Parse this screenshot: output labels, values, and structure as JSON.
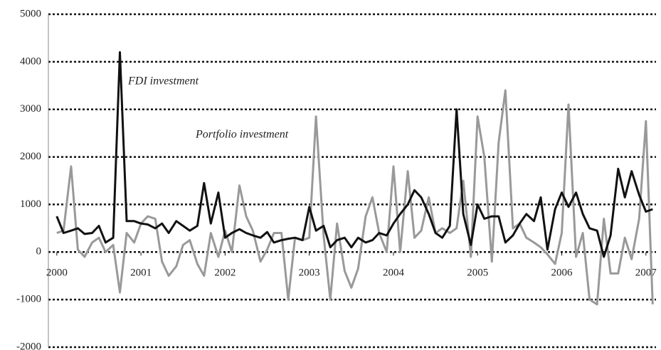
{
  "chart_data": {
    "type": "line",
    "annotations": [
      "FDI investment",
      "Portfolio investment"
    ],
    "x": [
      2000,
      2000.08,
      2000.17,
      2000.25,
      2000.33,
      2000.42,
      2000.5,
      2000.58,
      2000.67,
      2000.75,
      2000.83,
      2000.92,
      2001,
      2001.08,
      2001.17,
      2001.25,
      2001.33,
      2001.42,
      2001.5,
      2001.58,
      2001.67,
      2001.75,
      2001.83,
      2001.92,
      2002,
      2002.08,
      2002.17,
      2002.25,
      2002.33,
      2002.42,
      2002.5,
      2002.58,
      2002.67,
      2002.75,
      2002.83,
      2002.92,
      2003,
      2003.08,
      2003.17,
      2003.25,
      2003.33,
      2003.42,
      2003.5,
      2003.58,
      2003.67,
      2003.75,
      2003.83,
      2003.92,
      2004,
      2004.08,
      2004.17,
      2004.25,
      2004.33,
      2004.42,
      2004.5,
      2004.58,
      2004.67,
      2004.75,
      2004.83,
      2004.92,
      2005,
      2005.08,
      2005.17,
      2005.25,
      2005.33,
      2005.42,
      2005.5,
      2005.58,
      2005.67,
      2005.75,
      2005.83,
      2005.92,
      2006,
      2006.08,
      2006.17,
      2006.25,
      2006.33,
      2006.42,
      2006.5,
      2006.58,
      2006.67,
      2006.75,
      2006.83,
      2006.92,
      2007,
      2007.08
    ],
    "series": [
      {
        "name": "FDI investment",
        "color": "#111111",
        "values": [
          750,
          400,
          450,
          500,
          380,
          400,
          550,
          200,
          300,
          4200,
          650,
          650,
          600,
          580,
          500,
          600,
          400,
          650,
          550,
          450,
          550,
          1450,
          600,
          1250,
          300,
          400,
          480,
          400,
          350,
          300,
          420,
          200,
          250,
          280,
          300,
          250,
          950,
          450,
          550,
          100,
          250,
          300,
          100,
          300,
          200,
          250,
          400,
          350,
          600,
          800,
          1000,
          1300,
          1150,
          800,
          400,
          300,
          550,
          3000,
          800,
          150,
          1000,
          700,
          750,
          750,
          200,
          350,
          600,
          800,
          650,
          1150,
          50,
          900,
          1250,
          950,
          1250,
          800,
          500,
          450,
          -100,
          350,
          1750,
          1150,
          1700,
          1200,
          850,
          900
        ]
      },
      {
        "name": "Portfolio investment",
        "color": "#999999",
        "values": [
          400,
          450,
          1800,
          50,
          -100,
          200,
          300,
          0,
          150,
          -850,
          400,
          200,
          600,
          750,
          700,
          -200,
          -500,
          -300,
          150,
          250,
          -250,
          -500,
          400,
          -100,
          450,
          0,
          1400,
          750,
          450,
          -200,
          50,
          400,
          400,
          -1000,
          300,
          250,
          300,
          2850,
          350,
          -1000,
          600,
          -400,
          -750,
          -350,
          750,
          1150,
          400,
          0,
          1800,
          0,
          1700,
          300,
          450,
          1150,
          400,
          500,
          400,
          500,
          1500,
          -100,
          2850,
          2000,
          -200,
          2300,
          3400,
          500,
          600,
          300,
          200,
          100,
          -50,
          -250,
          400,
          3100,
          -100,
          400,
          -1000,
          -1100,
          700,
          -450,
          -450,
          300,
          -150,
          700,
          2750,
          -1100
        ]
      }
    ],
    "xlim": [
      1999.9,
      2007.12
    ],
    "xticks": [
      2000,
      2001,
      2002,
      2003,
      2004,
      2005,
      2006,
      2007
    ],
    "ylim": [
      -2000,
      5000
    ],
    "yticks": [
      -2000,
      -1000,
      0,
      1000,
      2000,
      3000,
      4000,
      5000
    ],
    "grid": true
  }
}
